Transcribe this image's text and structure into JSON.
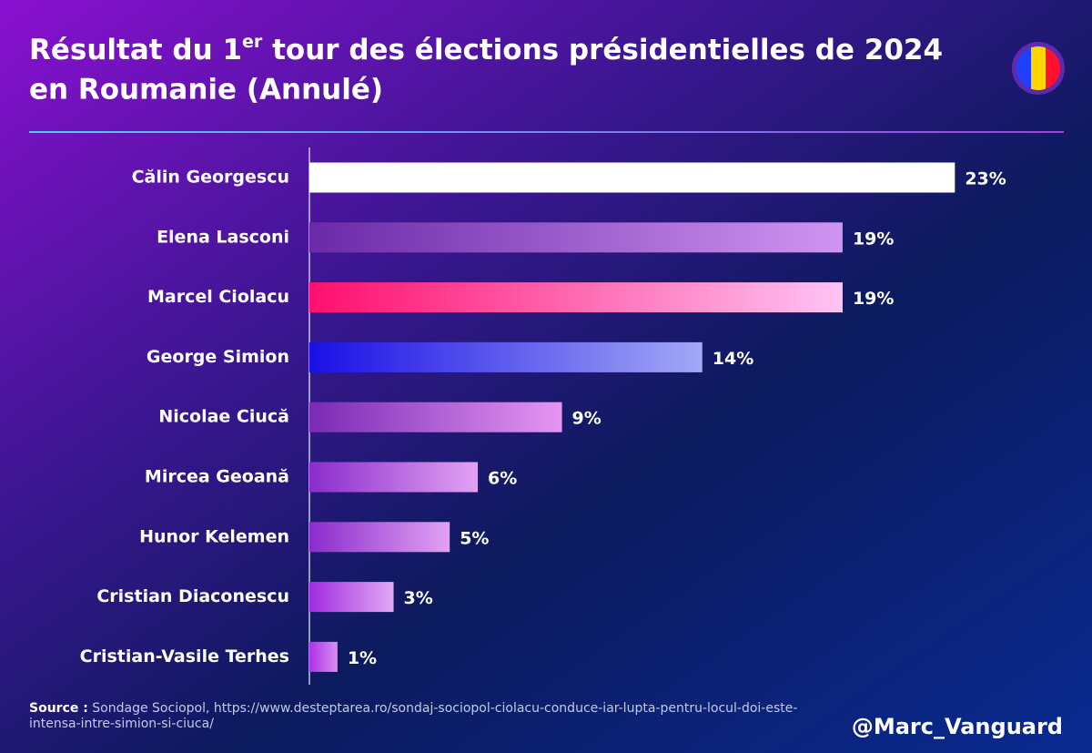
{
  "chart_data": {
    "type": "bar",
    "orientation": "horizontal",
    "title": [
      "Résultat du 1",
      "er",
      " tour des élections présidentielles de 2024",
      "en Roumanie (Annulé)"
    ],
    "categories": [
      "Călin Georgescu",
      "Elena Lasconi",
      "Marcel Ciolacu",
      "George Simion",
      "Nicolae Ciucă",
      "Mircea Geoană",
      "Hunor Kelemen",
      "Cristian Diaconescu",
      "Cristian-Vasile Terhes"
    ],
    "values": [
      23,
      19,
      19,
      14,
      9,
      6,
      5,
      3,
      1
    ],
    "value_labels": [
      "23%",
      "19%",
      "19%",
      "14%",
      "9%",
      "6%",
      "5%",
      "3%",
      "1%"
    ],
    "colors": [
      [
        "#ffffff",
        "#ffffff"
      ],
      [
        "#6a2aa8",
        "#cf95f2"
      ],
      [
        "#ff0f6e",
        "#ffc4f4"
      ],
      [
        "#1a10e6",
        "#a3a8f6"
      ],
      [
        "#7a2ab4",
        "#e596f3"
      ],
      [
        "#8a2ccc",
        "#e2a2f3"
      ],
      [
        "#8a2ccc",
        "#e2a2f3"
      ],
      [
        "#a02ce0",
        "#e2a8f4"
      ],
      [
        "#b030e8",
        "#d690f0"
      ]
    ],
    "xlim": [
      0,
      25
    ],
    "source_label": "Source :",
    "source": "Sondage Sociopol, https://www.desteptarea.ro/sondaj-sociopol-ciolacu-conduce-iar-lupta-pentru-locul-doi-este-intensa-intre-simion-si-ciuca/",
    "handle": "@Marc_Vanguard"
  }
}
